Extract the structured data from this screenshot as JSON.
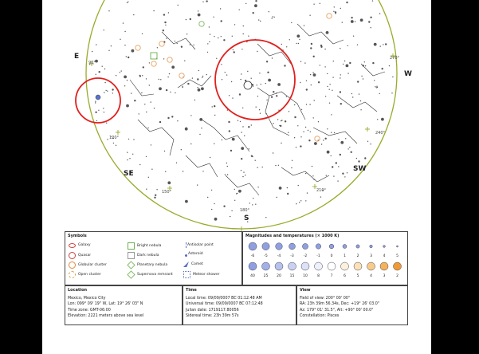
{
  "map": {
    "directions": {
      "east": "E",
      "west": "W",
      "southeast": "SE",
      "southwest": "SW",
      "south": "S"
    },
    "degree_labels": [
      "90°",
      "270°",
      "120°",
      "240°",
      "150°",
      "210°",
      "180°"
    ]
  },
  "symbols": {
    "title": "Symbols",
    "items": [
      {
        "label": "Galaxy",
        "icon": "galaxy-icon"
      },
      {
        "label": "Quasar",
        "icon": "quasar-icon"
      },
      {
        "label": "Globular cluster",
        "icon": "globular-cluster-icon"
      },
      {
        "label": "Open cluster",
        "icon": "open-cluster-icon"
      },
      {
        "label": "Bright nebula",
        "icon": "bright-nebula-icon"
      },
      {
        "label": "Dark nebula",
        "icon": "dark-nebula-icon"
      },
      {
        "label": "Planetary nebula",
        "icon": "planetary-nebula-icon"
      },
      {
        "label": "Supernova remnant",
        "icon": "supernova-remnant-icon"
      },
      {
        "label": "Antisolar point",
        "icon": "antisolar-point-icon"
      },
      {
        "label": "Asteroid",
        "icon": "asteroid-icon"
      },
      {
        "label": "Comet",
        "icon": "comet-icon"
      },
      {
        "label": "Meteor shower",
        "icon": "meteor-shower-icon"
      }
    ]
  },
  "magnitudes": {
    "title": "Magnitudes and temperatures (× 1000 K)",
    "magnitudes": [
      "-6",
      "-5",
      "-4",
      "-3",
      "-2",
      "-1",
      "0",
      "1",
      "2",
      "3",
      "4",
      "5"
    ],
    "temperatures": [
      "40",
      "25",
      "20",
      "15",
      "10",
      "8",
      "7",
      "6",
      "5",
      "4",
      "3",
      "2"
    ],
    "colors": [
      "#8f9fe0",
      "#a3b0e6",
      "#b7c1ec",
      "#c9d1f1",
      "#dde2f6",
      "#eef0fa",
      "#ffffff",
      "#fdf1dc",
      "#fbe1b6",
      "#f8cc88",
      "#f4b35a",
      "#f09a35"
    ]
  },
  "location": {
    "title": "Location",
    "lines": [
      "Mexico, Mexico City",
      "Lon: 099° 09' 19\" W, Lat: 19° 26' 03\" N",
      "Time zone: GMT-06:00",
      "Elevation: 2221 meters above sea level"
    ]
  },
  "time": {
    "title": "Time",
    "lines": [
      "Local time: 09/09/0007 BC 01:12:48 AM",
      "Universal time: 09/09/0007 BC 07:12:48",
      "Julian date: 1719117.80056",
      "Sidereal time: 23h 39m 57s"
    ]
  },
  "view": {
    "title": "View",
    "lines": [
      "Field of view: 200° 00' 00\"",
      "RA: 23h 39m 56.34s, Dec: +19° 26' 03.0\"",
      "Az: 179° 01' 31.5\", Alt: +90° 00' 00.0\"",
      "Constellation: Pisces"
    ]
  }
}
